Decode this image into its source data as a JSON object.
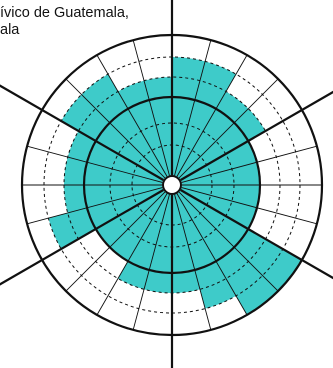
{
  "title_lines": [
    "ívico de Guatemala,",
    "ala"
  ],
  "colors": {
    "fill": "#3ecbc9",
    "line": "#111111",
    "dashed": "#555555",
    "background": "#ffffff"
  },
  "diagram": {
    "type": "polar-area",
    "sectors": 6,
    "sub_divisions_per_sector": 4,
    "rings": [
      "inner",
      "dashed",
      "solid-mid",
      "dashed",
      "outer-dashed",
      "outer-solid"
    ],
    "filled_level_per_subsector": [
      5,
      5,
      4,
      4,
      3,
      3,
      3,
      3,
      6,
      6,
      5,
      4,
      4,
      4,
      3,
      3,
      5,
      4,
      4,
      4,
      5,
      5,
      4,
      4
    ]
  }
}
